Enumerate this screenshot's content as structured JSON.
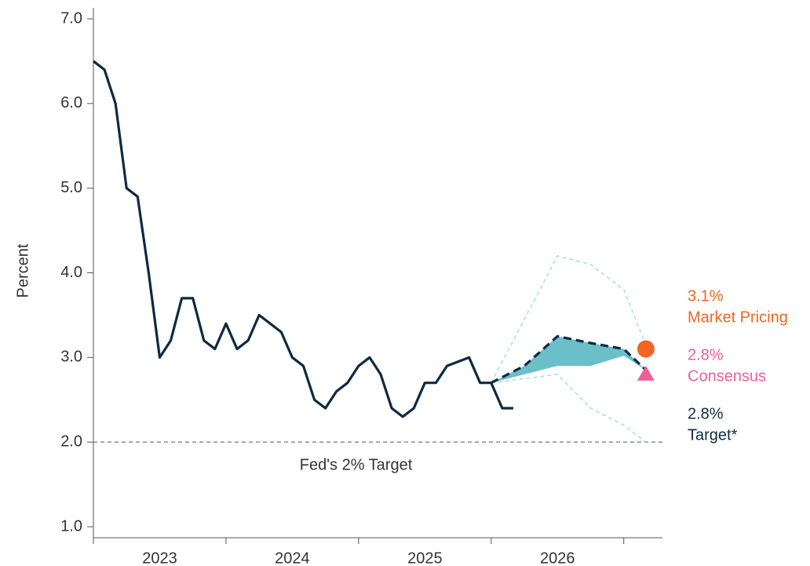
{
  "chart_data": {
    "type": "line",
    "y_label": "Percent",
    "xlim": [
      0,
      51.5
    ],
    "xticks": [
      0,
      12,
      24,
      36,
      48
    ],
    "year_labels": [
      {
        "value": 6,
        "label": "2023"
      },
      {
        "value": 18,
        "label": "2024"
      },
      {
        "value": 30,
        "label": "2025"
      },
      {
        "value": 42,
        "label": "2026"
      }
    ],
    "ylim": [
      0.87,
      7.13
    ],
    "yticks": [
      {
        "value": 1,
        "label": "1.0"
      },
      {
        "value": 2,
        "label": "2.0"
      },
      {
        "value": 3,
        "label": "3.0"
      },
      {
        "value": 4,
        "label": "4.0"
      },
      {
        "value": 5,
        "label": "5.0"
      },
      {
        "value": 6,
        "label": "6.0"
      },
      {
        "value": 7,
        "label": "7.0"
      }
    ],
    "reference_line": {
      "value": 2,
      "label": "Fed's 2% Target",
      "color": "#777777"
    },
    "series": [
      {
        "color": "#0d2a44",
        "dash": false,
        "x": [
          0,
          1,
          2,
          3,
          4,
          5,
          6,
          7,
          8,
          9,
          10,
          11,
          12,
          13,
          14,
          15,
          16,
          17,
          18,
          19,
          20,
          21,
          22,
          23,
          24,
          25,
          26,
          27,
          28,
          29,
          30,
          31,
          32,
          33,
          34,
          35,
          36,
          37,
          38
        ],
        "values": [
          6.5,
          6.4,
          6.0,
          5.0,
          4.9,
          4.0,
          3.0,
          3.2,
          3.7,
          3.7,
          3.2,
          3.1,
          3.4,
          3.1,
          3.2,
          3.5,
          3.4,
          3.3,
          3.0,
          2.9,
          2.5,
          2.4,
          2.6,
          2.7,
          2.9,
          3.0,
          2.8,
          2.4,
          2.3,
          2.4,
          2.7,
          2.7,
          2.9,
          2.95,
          3.0,
          2.7,
          2.7,
          2.4,
          2.4
        ]
      },
      {
        "color": "#0d2a44",
        "dash": true,
        "x": [
          36,
          39,
          42,
          45,
          48,
          50
        ],
        "values": [
          2.7,
          2.9,
          3.25,
          3.17,
          3.1,
          2.85
        ]
      },
      {
        "color": "#a8dde3",
        "dash": true,
        "thin": true,
        "x": [
          36,
          42,
          45,
          48,
          50
        ],
        "values": [
          2.7,
          4.2,
          4.1,
          3.8,
          3.15
        ]
      },
      {
        "color": "#a8dde3",
        "dash": true,
        "thin": true,
        "x": [
          36,
          42,
          45,
          48,
          50
        ],
        "values": [
          2.7,
          2.8,
          2.4,
          2.2,
          2.0
        ]
      }
    ],
    "band": {
      "color": "#6bbfc9",
      "x": [
        36,
        39,
        42,
        45,
        48,
        50
      ],
      "lower": [
        2.7,
        2.8,
        2.9,
        2.9,
        3.02,
        2.85
      ],
      "upper": [
        2.7,
        2.9,
        3.25,
        3.17,
        3.1,
        2.85
      ]
    },
    "annotations": [
      {
        "x": 50,
        "value": 3.1,
        "value_label": "3.1%",
        "name": "Market Pricing",
        "color": "#f26522",
        "marker": "circle"
      },
      {
        "x": 50,
        "value": 2.8,
        "value_label": "2.8%",
        "name": "Consensus",
        "color": "#ef5f98",
        "marker": "triangle"
      },
      {
        "value": 2.8,
        "value_label": "2.8%",
        "name": "Target*",
        "color": "#0d2a44"
      }
    ]
  }
}
